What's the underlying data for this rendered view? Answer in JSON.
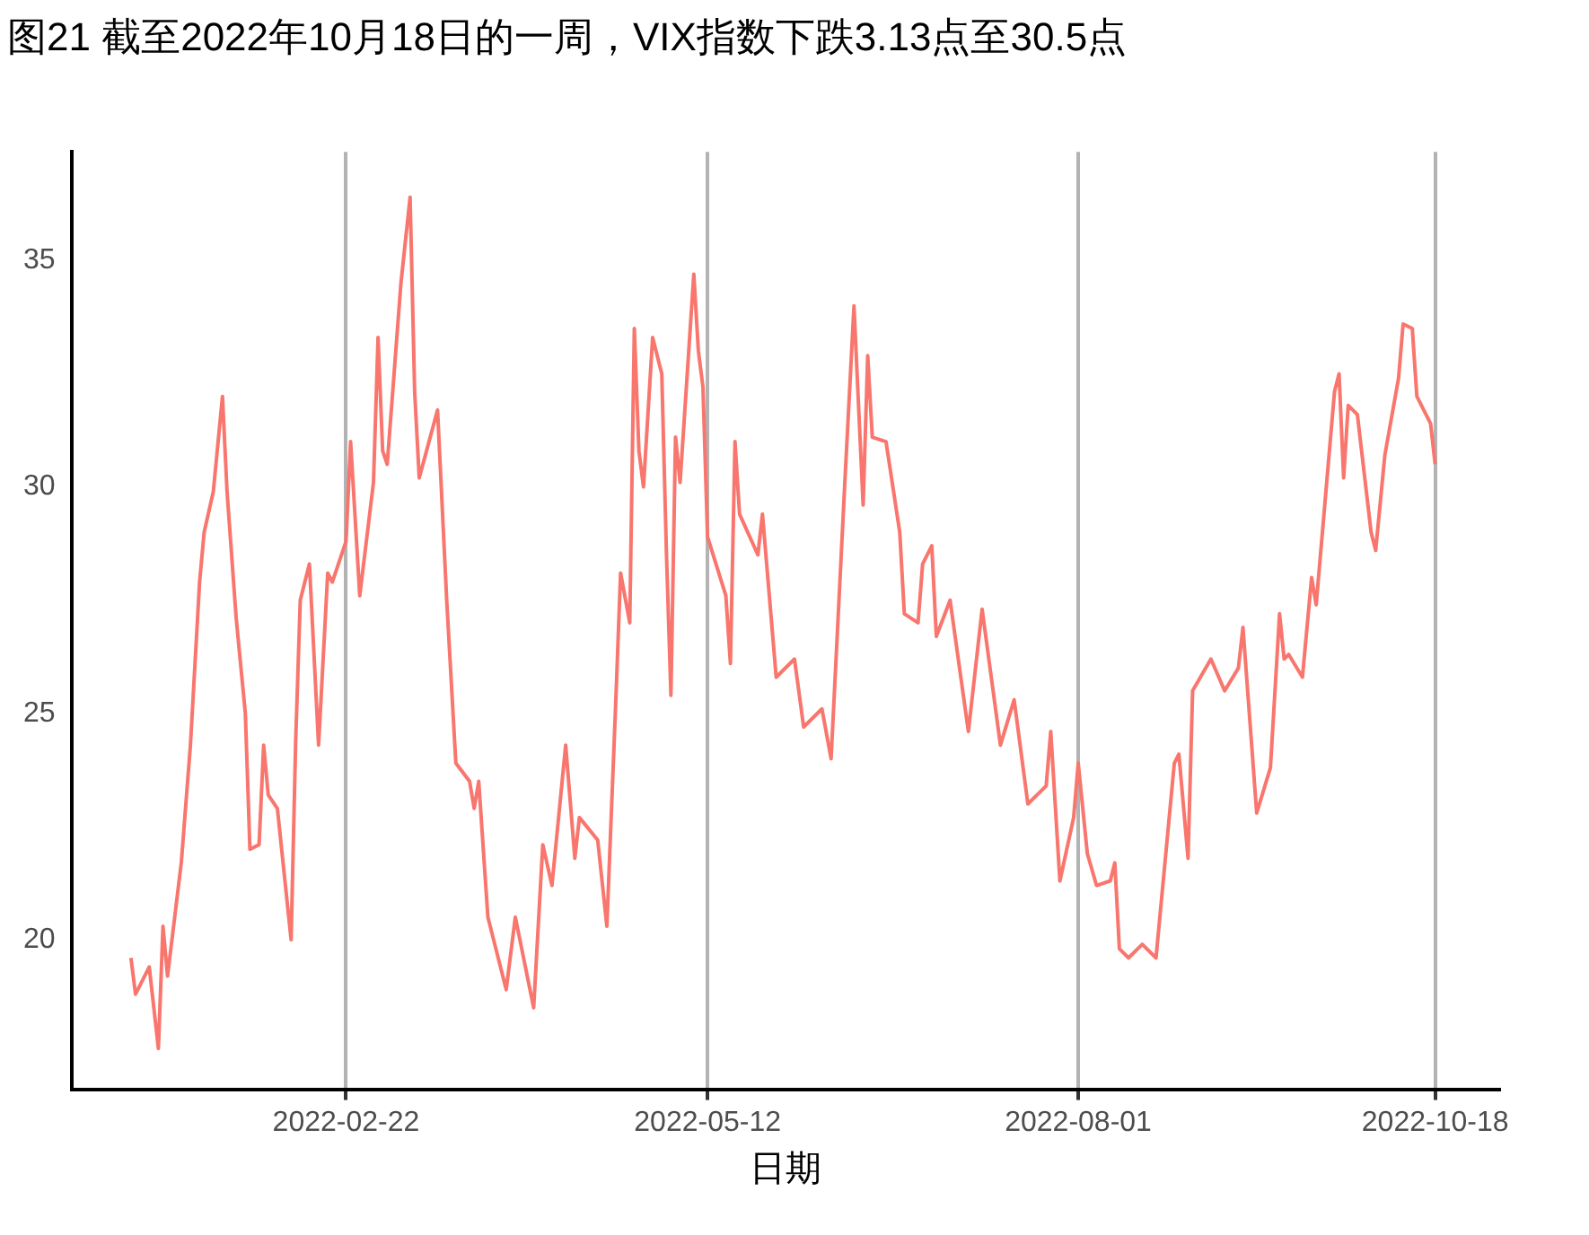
{
  "chart_data": {
    "type": "line",
    "title": "图21  截至2022年10月18日的一周，VIX指数下跌3.13点至30.5点",
    "xlabel": "日期",
    "x": [
      "2022-01-06",
      "2022-01-07",
      "2022-01-10",
      "2022-01-12",
      "2022-01-13",
      "2022-01-14",
      "2022-01-17",
      "2022-01-19",
      "2022-01-21",
      "2022-01-22",
      "2022-01-24",
      "2022-01-26",
      "2022-01-27",
      "2022-01-29",
      "2022-01-31",
      "2022-02-01",
      "2022-02-03",
      "2022-02-04",
      "2022-02-05",
      "2022-02-07",
      "2022-02-10",
      "2022-02-11",
      "2022-02-12",
      "2022-02-14",
      "2022-02-16",
      "2022-02-18",
      "2022-02-19",
      "2022-02-22",
      "2022-02-23",
      "2022-02-25",
      "2022-02-28",
      "2022-03-01",
      "2022-03-02",
      "2022-03-03",
      "2022-03-06",
      "2022-03-08",
      "2022-03-09",
      "2022-03-10",
      "2022-03-14",
      "2022-03-16",
      "2022-03-18",
      "2022-03-21",
      "2022-03-22",
      "2022-03-23",
      "2022-03-25",
      "2022-03-29",
      "2022-03-31",
      "2022-04-04",
      "2022-04-06",
      "2022-04-08",
      "2022-04-11",
      "2022-04-13",
      "2022-04-14",
      "2022-04-18",
      "2022-04-20",
      "2022-04-22",
      "2022-04-23",
      "2022-04-25",
      "2022-04-26",
      "2022-04-27",
      "2022-04-28",
      "2022-04-30",
      "2022-05-02",
      "2022-05-03",
      "2022-05-04",
      "2022-05-05",
      "2022-05-06",
      "2022-05-09",
      "2022-05-10",
      "2022-05-11",
      "2022-05-12",
      "2022-05-16",
      "2022-05-17",
      "2022-05-18",
      "2022-05-19",
      "2022-05-23",
      "2022-05-24",
      "2022-05-27",
      "2022-05-31",
      "2022-06-02",
      "2022-06-06",
      "2022-06-08",
      "2022-06-11",
      "2022-06-13",
      "2022-06-15",
      "2022-06-16",
      "2022-06-17",
      "2022-06-20",
      "2022-06-23",
      "2022-06-24",
      "2022-06-27",
      "2022-06-28",
      "2022-06-30",
      "2022-07-01",
      "2022-07-04",
      "2022-07-08",
      "2022-07-11",
      "2022-07-15",
      "2022-07-18",
      "2022-07-21",
      "2022-07-25",
      "2022-07-26",
      "2022-07-28",
      "2022-07-31",
      "2022-08-01",
      "2022-08-03",
      "2022-08-05",
      "2022-08-08",
      "2022-08-09",
      "2022-08-10",
      "2022-08-12",
      "2022-08-15",
      "2022-08-18",
      "2022-08-22",
      "2022-08-23",
      "2022-08-25",
      "2022-08-26",
      "2022-08-30",
      "2022-09-02",
      "2022-09-05",
      "2022-09-06",
      "2022-09-09",
      "2022-09-12",
      "2022-09-14",
      "2022-09-15",
      "2022-09-16",
      "2022-09-19",
      "2022-09-21",
      "2022-09-22",
      "2022-09-26",
      "2022-09-27",
      "2022-09-28",
      "2022-09-29",
      "2022-10-01",
      "2022-10-04",
      "2022-10-05",
      "2022-10-07",
      "2022-10-10",
      "2022-10-11",
      "2022-10-13",
      "2022-10-14",
      "2022-10-17",
      "2022-10-18"
    ],
    "series": [
      {
        "color": "#f8766d",
        "values": [
          19.6,
          18.8,
          19.4,
          17.6,
          20.3,
          19.2,
          21.7,
          24.3,
          27.9,
          29.0,
          29.9,
          32.0,
          29.9,
          27.1,
          25.0,
          22.0,
          22.1,
          24.3,
          23.2,
          22.9,
          20.0,
          24.4,
          27.5,
          28.3,
          24.3,
          28.1,
          27.9,
          28.8,
          31.0,
          27.6,
          30.1,
          33.3,
          30.8,
          30.5,
          34.5,
          36.4,
          32.1,
          30.2,
          31.7,
          27.5,
          23.9,
          23.5,
          22.9,
          23.5,
          20.5,
          18.9,
          20.5,
          18.5,
          22.1,
          21.2,
          24.3,
          21.8,
          22.7,
          22.2,
          20.3,
          25.4,
          28.1,
          27.0,
          33.5,
          30.8,
          30.0,
          33.3,
          32.5,
          28.6,
          25.4,
          31.1,
          30.1,
          34.7,
          33.0,
          32.2,
          28.9,
          27.6,
          26.1,
          31.0,
          29.4,
          28.5,
          29.4,
          25.8,
          26.2,
          24.7,
          25.1,
          24.0,
          30.1,
          34.0,
          29.6,
          32.9,
          31.1,
          31.0,
          29.0,
          27.2,
          27.0,
          28.3,
          28.7,
          26.7,
          27.5,
          24.6,
          27.3,
          24.3,
          25.3,
          23.0,
          23.4,
          24.6,
          21.3,
          22.7,
          23.9,
          21.9,
          21.2,
          21.3,
          21.7,
          19.8,
          19.6,
          19.9,
          19.6,
          23.9,
          24.1,
          21.8,
          25.5,
          26.2,
          25.5,
          26.0,
          26.9,
          22.8,
          23.8,
          27.2,
          26.2,
          26.3,
          25.8,
          28.0,
          27.4,
          32.1,
          32.5,
          30.2,
          31.8,
          31.6,
          29.0,
          28.6,
          30.7,
          32.4,
          33.6,
          33.5,
          32.0,
          31.4,
          30.5
        ]
      }
    ],
    "xlim": [
      "2021-12-24",
      "2022-11-01"
    ],
    "xticks": [
      "2022-02-22",
      "2022-05-12",
      "2022-08-01",
      "2022-10-18"
    ],
    "ylim": [
      16.7,
      37.4
    ],
    "yticks": [
      20,
      25,
      30,
      35
    ],
    "grid": "x",
    "legend": false,
    "marker": "none",
    "line_style": "solid"
  }
}
